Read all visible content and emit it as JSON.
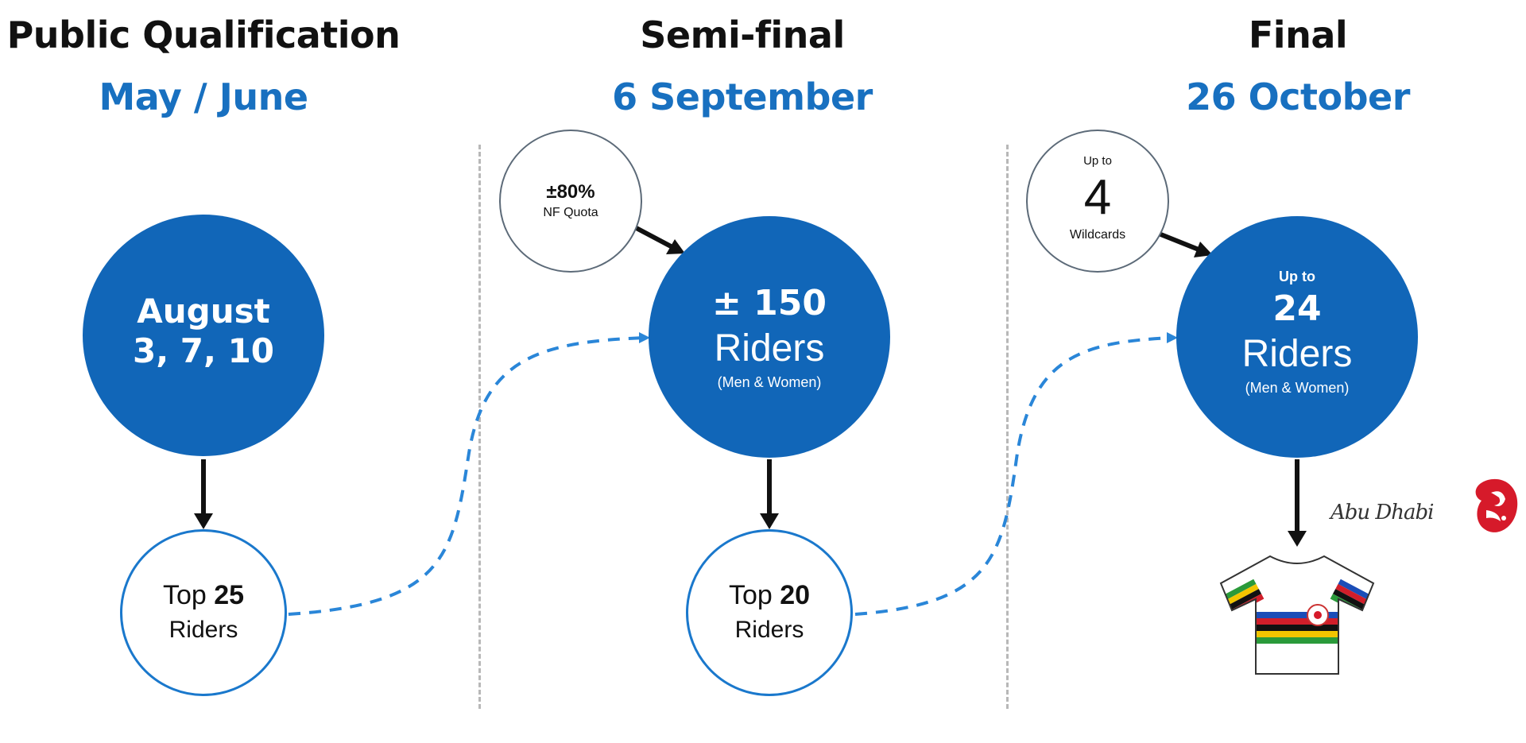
{
  "columns": [
    {
      "title": "Public Qualification",
      "date": "May / June",
      "main_circle": {
        "line1": "August",
        "line2": "3, 7, 10"
      },
      "result": {
        "prefix": "Top ",
        "number": "25",
        "unit": "Riders"
      }
    },
    {
      "title": "Semi-final",
      "date": "6 September",
      "quota": {
        "value": "±80%",
        "label": "NF Quota"
      },
      "main_circle": {
        "count": "± 150",
        "unit": "Riders",
        "note": "(Men & Women)"
      },
      "result": {
        "prefix": "Top ",
        "number": "20",
        "unit": "Riders"
      }
    },
    {
      "title": "Final",
      "date": "26 October",
      "wildcards": {
        "top": "Up to",
        "number": "4",
        "label": "Wildcards"
      },
      "main_circle": {
        "top": "Up to",
        "count": "24",
        "unit": "Riders",
        "note": "(Men & Women)"
      },
      "logo": {
        "text": "Abu Dhabi"
      }
    }
  ],
  "colors": {
    "accent": "#1870c0",
    "circle_fill": "#1166b8",
    "ring": "#1a78cc",
    "divider": "#b8b8b8"
  },
  "icons": {
    "jersey": "rainbow-jersey-icon",
    "logo": "abu-dhabi-logo"
  }
}
